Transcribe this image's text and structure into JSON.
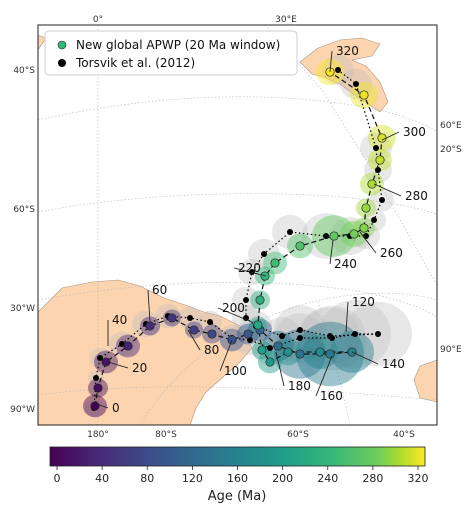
{
  "chart_data": {
    "type": "scatter",
    "title": "",
    "legend": {
      "placement": "top-left",
      "entries": [
        {
          "label": "New global APWP (20 Ma window)",
          "marker": "teal"
        },
        {
          "label": "Torsvik et al. (2012)",
          "marker": "black"
        }
      ]
    },
    "graticule_labels": {
      "top": [
        "0°",
        "30°E"
      ],
      "left": [
        "40°S",
        "60°S",
        "30°W",
        "90°W"
      ],
      "right": [
        "60°E",
        "20°S",
        "90°E"
      ],
      "bottom": [
        "180°",
        "80°S",
        "60°S",
        "40°S"
      ]
    },
    "age_labels": [
      "0",
      "20",
      "40",
      "60",
      "80",
      "100",
      "120",
      "140",
      "160",
      "180",
      "200",
      "220",
      "240",
      "260",
      "280",
      "300",
      "320"
    ],
    "series": [
      {
        "name": "New global APWP (20 Ma window)",
        "age_ma": [
          0,
          10,
          20,
          30,
          40,
          50,
          60,
          70,
          80,
          90,
          100,
          110,
          120,
          130,
          140,
          150,
          160,
          170,
          180,
          190,
          200,
          210,
          220,
          230,
          240,
          250,
          260,
          270,
          280,
          290,
          300,
          310,
          320
        ]
      },
      {
        "name": "Torsvik et al. (2012)",
        "age_ma": [
          0,
          10,
          20,
          30,
          40,
          50,
          60,
          70,
          80,
          90,
          100,
          110,
          120,
          130,
          140,
          150,
          160,
          170,
          180,
          190,
          200,
          210,
          220,
          230,
          240,
          250,
          260,
          270,
          280,
          290,
          300,
          310,
          320
        ]
      }
    ],
    "colorbar": {
      "label": "Age (Ma)",
      "min": 0,
      "max": 320,
      "ticks": [
        0,
        40,
        80,
        120,
        160,
        200,
        240,
        280,
        320
      ],
      "colormap": "viridis"
    },
    "colors": {
      "land": "#fcd5b0",
      "ocean": "#ffffff",
      "reference_path": "#000000",
      "uncertainty_reference": "#bdbdbd"
    }
  }
}
